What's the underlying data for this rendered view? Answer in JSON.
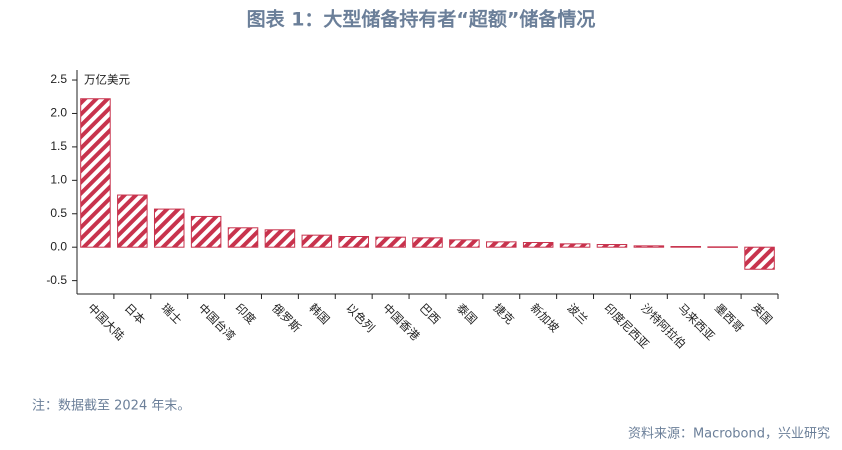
{
  "chart_data": {
    "type": "bar",
    "title": "图表 1：大型储备持有者“超额”储备情况",
    "unit_label": "万亿美元",
    "categories": [
      "中国大陆",
      "日本",
      "瑞士",
      "中国台湾",
      "印度",
      "俄罗斯",
      "韩国",
      "以色列",
      "中国香港",
      "巴西",
      "泰国",
      "捷克",
      "新加坡",
      "波兰",
      "印度尼西亚",
      "沙特阿拉伯",
      "马来西亚",
      "墨西哥",
      "英国"
    ],
    "values": [
      2.22,
      0.78,
      0.57,
      0.46,
      0.29,
      0.26,
      0.18,
      0.16,
      0.15,
      0.14,
      0.11,
      0.08,
      0.07,
      0.05,
      0.04,
      0.02,
      0.01,
      0.005,
      -0.33
    ],
    "color": "#c8334d",
    "ylim": [
      -0.7,
      2.65
    ],
    "yticks": [
      2.5,
      {
        "value": 2,
        "label": "2.0"
      },
      1.5,
      {
        "value": 1,
        "label": "1.0"
      },
      0.5,
      {
        "value": 0,
        "label": "0.0"
      },
      -0.5
    ],
    "grid": false,
    "note": "注：数据截至 2024 年末。",
    "source": "资料来源：Macrobond，兴业研究"
  }
}
